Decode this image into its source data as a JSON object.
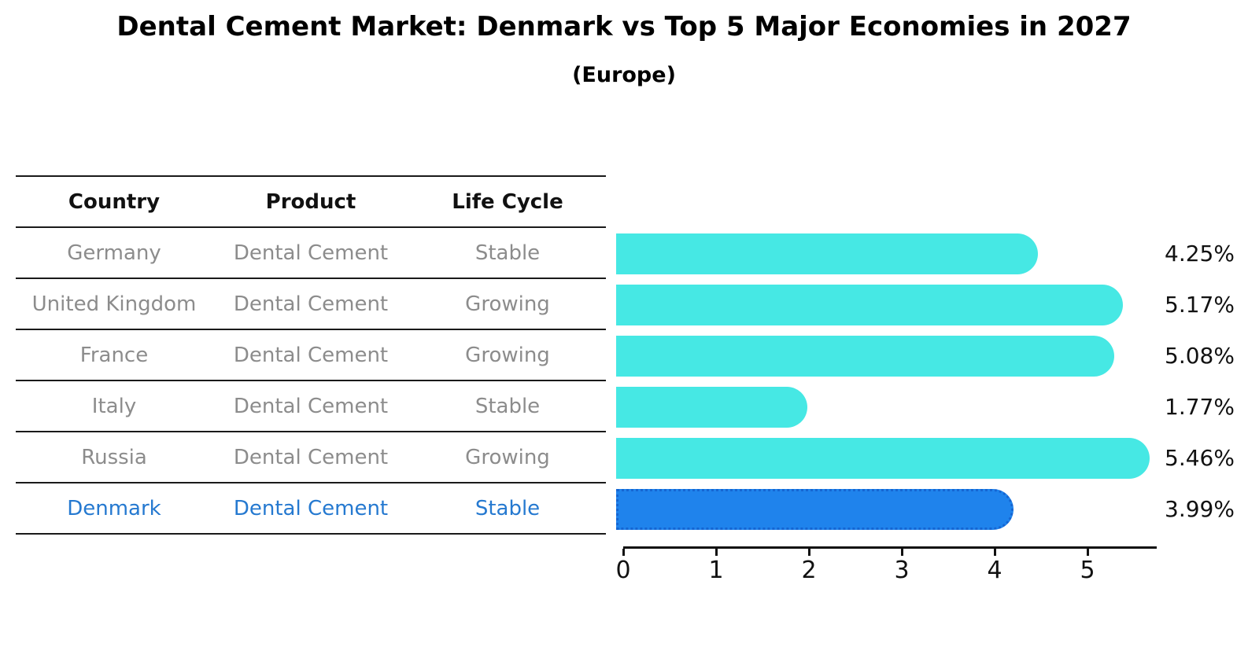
{
  "title": "Dental Cement Market: Denmark vs Top 5 Major Economies in 2027",
  "subtitle": "(Europe)",
  "table": {
    "headers": [
      "Country",
      "Product",
      "Life Cycle"
    ],
    "rows": [
      {
        "country": "Germany",
        "product": "Dental Cement",
        "life_cycle": "Stable",
        "highlighted": false
      },
      {
        "country": "United Kingdom",
        "product": "Dental Cement",
        "life_cycle": "Growing",
        "highlighted": false
      },
      {
        "country": "France",
        "product": "Dental Cement",
        "life_cycle": "Growing",
        "highlighted": false
      },
      {
        "country": "Italy",
        "product": "Dental Cement",
        "life_cycle": "Stable",
        "highlighted": false
      },
      {
        "country": "Russia",
        "product": "Dental Cement",
        "life_cycle": "Growing",
        "highlighted": false
      },
      {
        "country": "Denmark",
        "product": "Dental Cement",
        "life_cycle": "Stable",
        "highlighted": true
      }
    ]
  },
  "chart_data": {
    "type": "bar",
    "orientation": "horizontal",
    "title": "Dental Cement Market: Denmark vs Top 5 Major Economies in 2027",
    "subtitle": "(Europe)",
    "categories": [
      "Germany",
      "United Kingdom",
      "France",
      "Italy",
      "Russia",
      "Denmark"
    ],
    "values": [
      4.25,
      5.17,
      5.08,
      1.77,
      5.46,
      3.99
    ],
    "value_labels": [
      "4.25%",
      "5.17%",
      "5.08%",
      "1.77%",
      "5.46%",
      "3.99%"
    ],
    "unit": "percent",
    "highlight_category": "Denmark",
    "highlight_index": 5,
    "xlabel": "",
    "ylabel": "",
    "xlim": [
      0,
      5.75
    ],
    "x_ticks": [
      0,
      1,
      2,
      3,
      4,
      5
    ],
    "grid": false,
    "legend": false
  },
  "colors": {
    "bar": "#46e8e4",
    "highlight_bar": "#1f83ec",
    "highlight_border": "#1565d2",
    "highlight_text": "#2579d0",
    "table_text": "#8c8c8c",
    "header_text": "#111111",
    "axis": "#111111",
    "background": "#ffffff"
  }
}
